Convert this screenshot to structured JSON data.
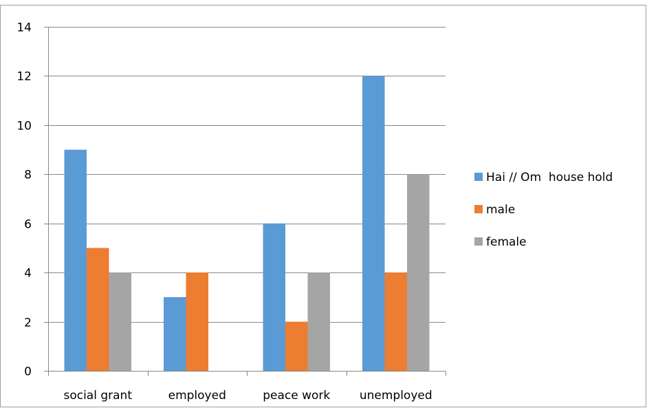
{
  "chart_data": {
    "type": "bar",
    "categories": [
      "social grant",
      "employed",
      "peace work",
      "unemployed"
    ],
    "series": [
      {
        "name": "Hai // Om  house hold",
        "values": [
          9,
          3,
          6,
          12
        ],
        "color": "#5B9BD5"
      },
      {
        "name": "male",
        "values": [
          5,
          4,
          2,
          4
        ],
        "color": "#ED7D31"
      },
      {
        "name": "female",
        "values": [
          4,
          0,
          4,
          8
        ],
        "color": "#A5A5A5"
      }
    ],
    "yticks": [
      "0",
      "2",
      "4",
      "6",
      "8",
      "10",
      "12",
      "14"
    ],
    "ylim": [
      0,
      14
    ],
    "grid": true,
    "legend_position": "right",
    "gridline_color": "#868686",
    "axis_color": "#868686"
  }
}
